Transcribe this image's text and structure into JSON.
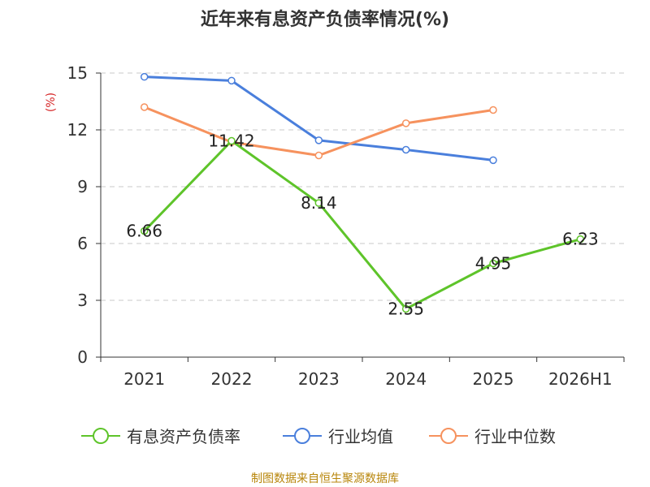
{
  "chart_data": {
    "type": "line",
    "title": "近年来有息资产负债率情况(%)",
    "ylabel": "(%)",
    "xlabel": "",
    "categories": [
      "2021",
      "2022",
      "2023",
      "2024",
      "2025",
      "2026H1"
    ],
    "ylim": [
      0,
      15
    ],
    "yticks": [
      0,
      3,
      6,
      9,
      12,
      15
    ],
    "grid": true,
    "legend_position": "bottom",
    "series": [
      {
        "name": "有息资产负债率",
        "color": "#5ec42a",
        "values": [
          6.66,
          11.42,
          8.14,
          2.55,
          4.95,
          6.23
        ],
        "labels": [
          "6.66",
          "11.42",
          "8.14",
          "2.55",
          "4.95",
          "6.23"
        ]
      },
      {
        "name": "行业均值",
        "color": "#4a7fdc",
        "values": [
          14.8,
          14.6,
          11.45,
          10.95,
          10.4,
          null
        ]
      },
      {
        "name": "行业中位数",
        "color": "#f6925e",
        "values": [
          13.2,
          11.35,
          10.65,
          12.35,
          13.05,
          null
        ]
      }
    ],
    "source": "制图数据来自恒生聚源数据库"
  }
}
